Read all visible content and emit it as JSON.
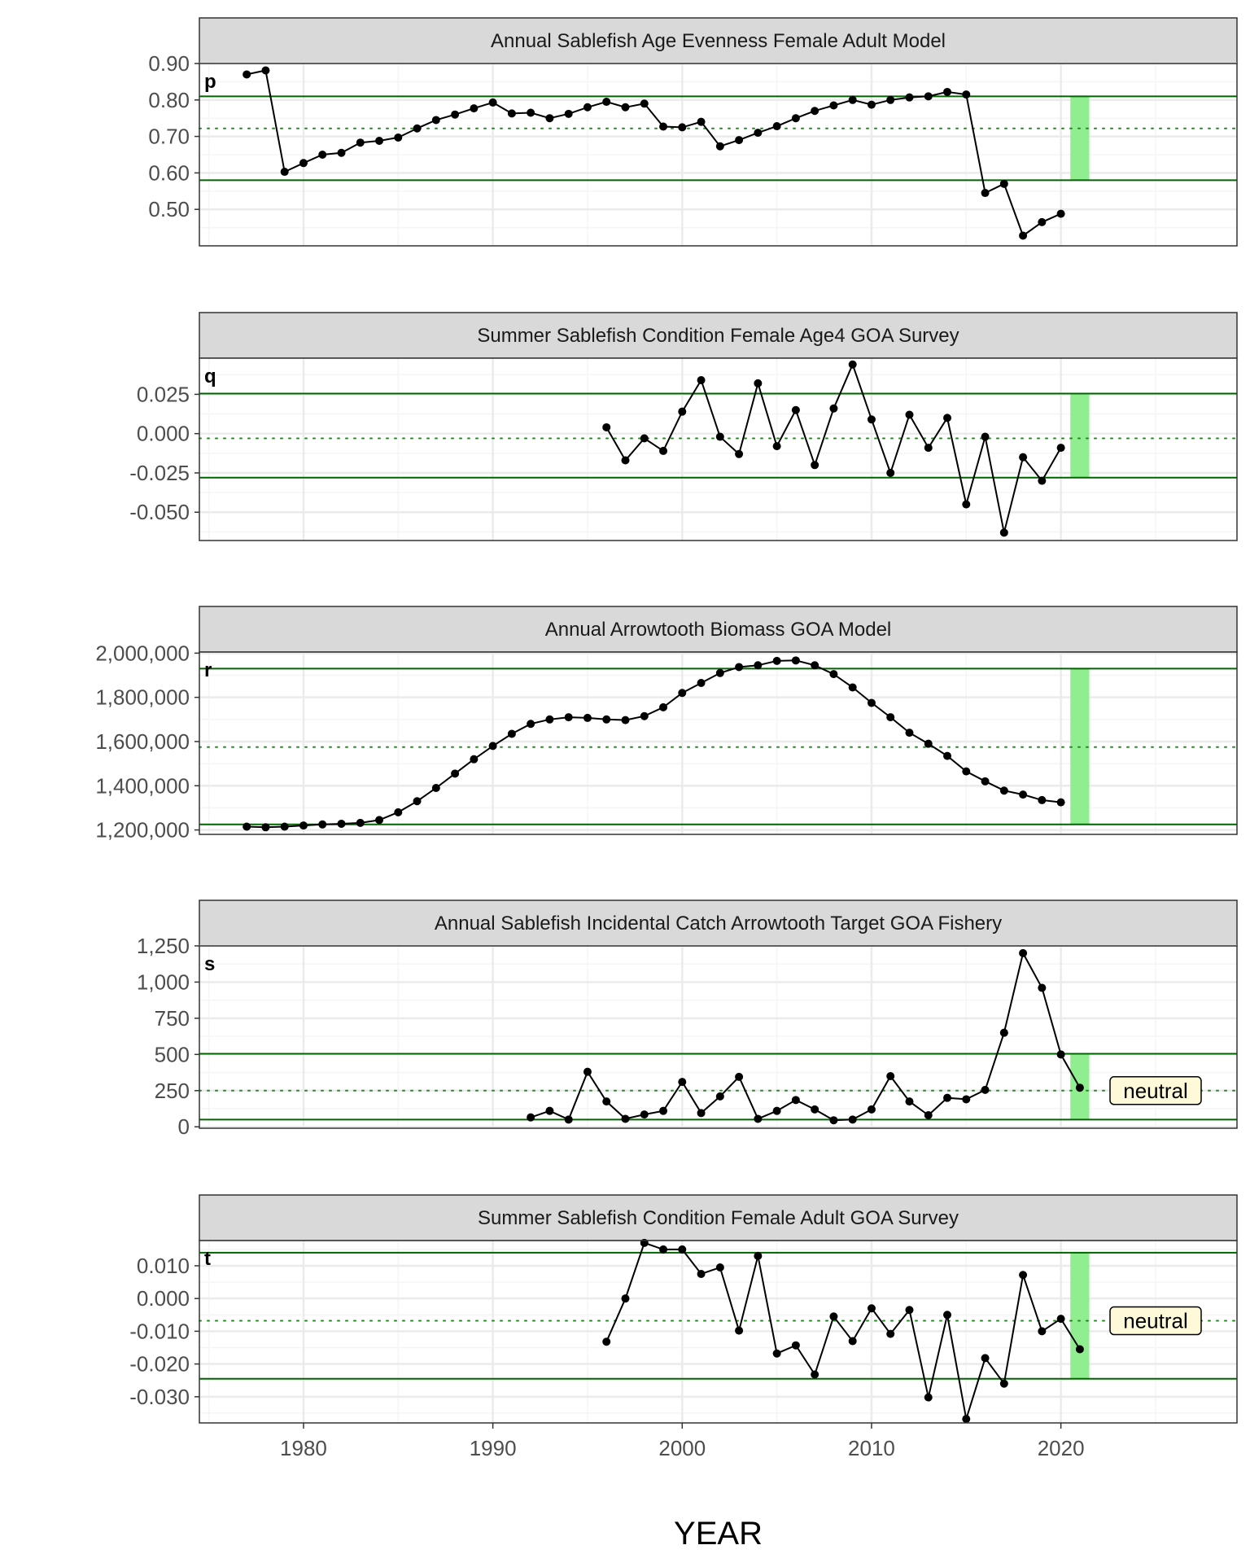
{
  "xlabel": "YEAR",
  "x_ticks": [
    1980,
    1990,
    2000,
    2010,
    2020
  ],
  "xlim": [
    1974.5,
    2029.3
  ],
  "colors": {
    "strip_fill": "#d9d9d9",
    "grid_major": "#ebebeb",
    "grid_minor": "#f5f5f5",
    "bound_line": "#006400",
    "mean_line": "#228b22",
    "highlight": "#90ee90",
    "series": "#000000",
    "badge_fill": "#fdf9d9"
  },
  "chart_data": [
    {
      "type": "line",
      "panel_letter": "p",
      "title": "Annual Sablefish Age Evenness Female Adult Model",
      "ylim": [
        0.4,
        0.9
      ],
      "y_ticks": [
        0.5,
        0.6,
        0.7,
        0.8,
        0.9
      ],
      "y_tick_labels": [
        "0.50",
        "0.60",
        "0.70",
        "0.80",
        "0.90"
      ],
      "upper_line": 0.81,
      "mean_line": 0.722,
      "lower_line": 0.58,
      "highlight_year": 2021,
      "badge": "",
      "x": [
        1977,
        1978,
        1979,
        1980,
        1981,
        1982,
        1983,
        1984,
        1985,
        1986,
        1987,
        1988,
        1989,
        1990,
        1991,
        1992,
        1993,
        1994,
        1995,
        1996,
        1997,
        1998,
        1999,
        2000,
        2001,
        2002,
        2003,
        2004,
        2005,
        2006,
        2007,
        2008,
        2009,
        2010,
        2011,
        2012,
        2013,
        2014,
        2015,
        2016,
        2017,
        2018,
        2019,
        2020
      ],
      "y": [
        0.87,
        0.881,
        0.603,
        0.627,
        0.65,
        0.655,
        0.683,
        0.688,
        0.697,
        0.722,
        0.745,
        0.76,
        0.777,
        0.793,
        0.763,
        0.765,
        0.75,
        0.762,
        0.78,
        0.795,
        0.78,
        0.79,
        0.727,
        0.725,
        0.74,
        0.673,
        0.69,
        0.71,
        0.728,
        0.75,
        0.77,
        0.785,
        0.8,
        0.787,
        0.8,
        0.807,
        0.81,
        0.822,
        0.815,
        0.545,
        0.57,
        0.428,
        0.465,
        0.488
      ]
    },
    {
      "type": "line",
      "panel_letter": "q",
      "title": "Summer Sablefish Condition Female Age4 GOA Survey",
      "ylim": [
        -0.068,
        0.048
      ],
      "y_ticks": [
        -0.05,
        -0.025,
        0.0,
        0.025
      ],
      "y_tick_labels": [
        "-0.050",
        "-0.025",
        "0.000",
        "0.025"
      ],
      "upper_line": 0.0255,
      "mean_line": -0.003,
      "lower_line": -0.028,
      "highlight_year": 2021,
      "badge": "",
      "x": [
        1996,
        1997,
        1998,
        1999,
        2000,
        2001,
        2002,
        2003,
        2004,
        2005,
        2006,
        2007,
        2008,
        2009,
        2010,
        2011,
        2012,
        2013,
        2014,
        2015,
        2016,
        2017,
        2018,
        2019,
        2020
      ],
      "y": [
        0.004,
        -0.017,
        -0.003,
        -0.011,
        0.014,
        0.034,
        -0.002,
        -0.013,
        0.032,
        -0.008,
        0.015,
        -0.02,
        0.016,
        0.044,
        0.009,
        -0.025,
        0.012,
        -0.009,
        0.01,
        -0.045,
        -0.002,
        -0.063,
        -0.015,
        -0.03,
        -0.009
      ]
    },
    {
      "type": "line",
      "panel_letter": "r",
      "title": "Annual Arrowtooth Biomass GOA Model",
      "ylim": [
        1180000,
        2005000
      ],
      "y_ticks": [
        1200000,
        1400000,
        1600000,
        1800000,
        2000000
      ],
      "y_tick_labels": [
        "1,200,000",
        "1,400,000",
        "1,600,000",
        "1,800,000",
        "2,000,000"
      ],
      "upper_line": 1930000,
      "mean_line": 1575000,
      "lower_line": 1225000,
      "highlight_year": 2021,
      "badge": "",
      "x": [
        1977,
        1978,
        1979,
        1980,
        1981,
        1982,
        1983,
        1984,
        1985,
        1986,
        1987,
        1988,
        1989,
        1990,
        1991,
        1992,
        1993,
        1994,
        1995,
        1996,
        1997,
        1998,
        1999,
        2000,
        2001,
        2002,
        2003,
        2004,
        2005,
        2006,
        2007,
        2008,
        2009,
        2010,
        2011,
        2012,
        2013,
        2014,
        2015,
        2016,
        2017,
        2018,
        2019,
        2020
      ],
      "y": [
        1215000,
        1212000,
        1215000,
        1220000,
        1225000,
        1228000,
        1232000,
        1245000,
        1280000,
        1330000,
        1390000,
        1455000,
        1520000,
        1580000,
        1635000,
        1680000,
        1700000,
        1710000,
        1707000,
        1700000,
        1697000,
        1715000,
        1755000,
        1820000,
        1865000,
        1910000,
        1937000,
        1945000,
        1965000,
        1967000,
        1945000,
        1905000,
        1845000,
        1775000,
        1710000,
        1640000,
        1590000,
        1535000,
        1465000,
        1420000,
        1378000,
        1360000,
        1335000,
        1325000
      ]
    },
    {
      "type": "line",
      "panel_letter": "s",
      "title": "Annual Sablefish Incidental Catch Arrowtooth Target GOA Fishery",
      "ylim": [
        -10,
        1250
      ],
      "y_ticks": [
        0,
        250,
        500,
        750,
        1000,
        1250
      ],
      "y_tick_labels": [
        "0",
        "250",
        "500",
        "750",
        "1,000",
        "1,250"
      ],
      "upper_line": 505,
      "mean_line": 250,
      "lower_line": 50,
      "highlight_year": 2021,
      "badge": "neutral",
      "x": [
        1992,
        1993,
        1994,
        1995,
        1996,
        1997,
        1998,
        1999,
        2000,
        2001,
        2002,
        2003,
        2004,
        2005,
        2006,
        2007,
        2008,
        2009,
        2010,
        2011,
        2012,
        2013,
        2014,
        2015,
        2016,
        2017,
        2018,
        2019,
        2020,
        2021
      ],
      "y": [
        65,
        110,
        50,
        380,
        175,
        55,
        85,
        110,
        310,
        95,
        210,
        345,
        55,
        110,
        185,
        120,
        45,
        50,
        120,
        350,
        175,
        80,
        200,
        190,
        255,
        650,
        1200,
        960,
        500,
        270
      ]
    },
    {
      "type": "line",
      "panel_letter": "t",
      "title": "Summer Sablefish Condition Female Adult GOA Survey",
      "ylim": [
        -0.038,
        0.0177
      ],
      "y_ticks": [
        -0.03,
        -0.02,
        -0.01,
        0.0,
        0.01
      ],
      "y_tick_labels": [
        "-0.030",
        "-0.020",
        "-0.010",
        "0.000",
        "0.010"
      ],
      "upper_line": 0.014,
      "mean_line": -0.0068,
      "lower_line": -0.0245,
      "highlight_year": 2021,
      "badge": "neutral",
      "x": [
        1996,
        1997,
        1998,
        1999,
        2000,
        2001,
        2002,
        2003,
        2004,
        2005,
        2006,
        2007,
        2008,
        2009,
        2010,
        2011,
        2012,
        2013,
        2014,
        2015,
        2016,
        2017,
        2018,
        2019,
        2020,
        2021
      ],
      "y": [
        -0.0132,
        0.0,
        0.017,
        0.015,
        0.015,
        0.0075,
        0.0095,
        -0.0098,
        0.013,
        -0.0168,
        -0.0143,
        -0.0232,
        -0.0055,
        -0.013,
        -0.003,
        -0.0108,
        -0.0035,
        -0.0302,
        -0.005,
        -0.0368,
        -0.0182,
        -0.026,
        0.0072,
        -0.01,
        -0.0062,
        -0.0155
      ]
    }
  ]
}
